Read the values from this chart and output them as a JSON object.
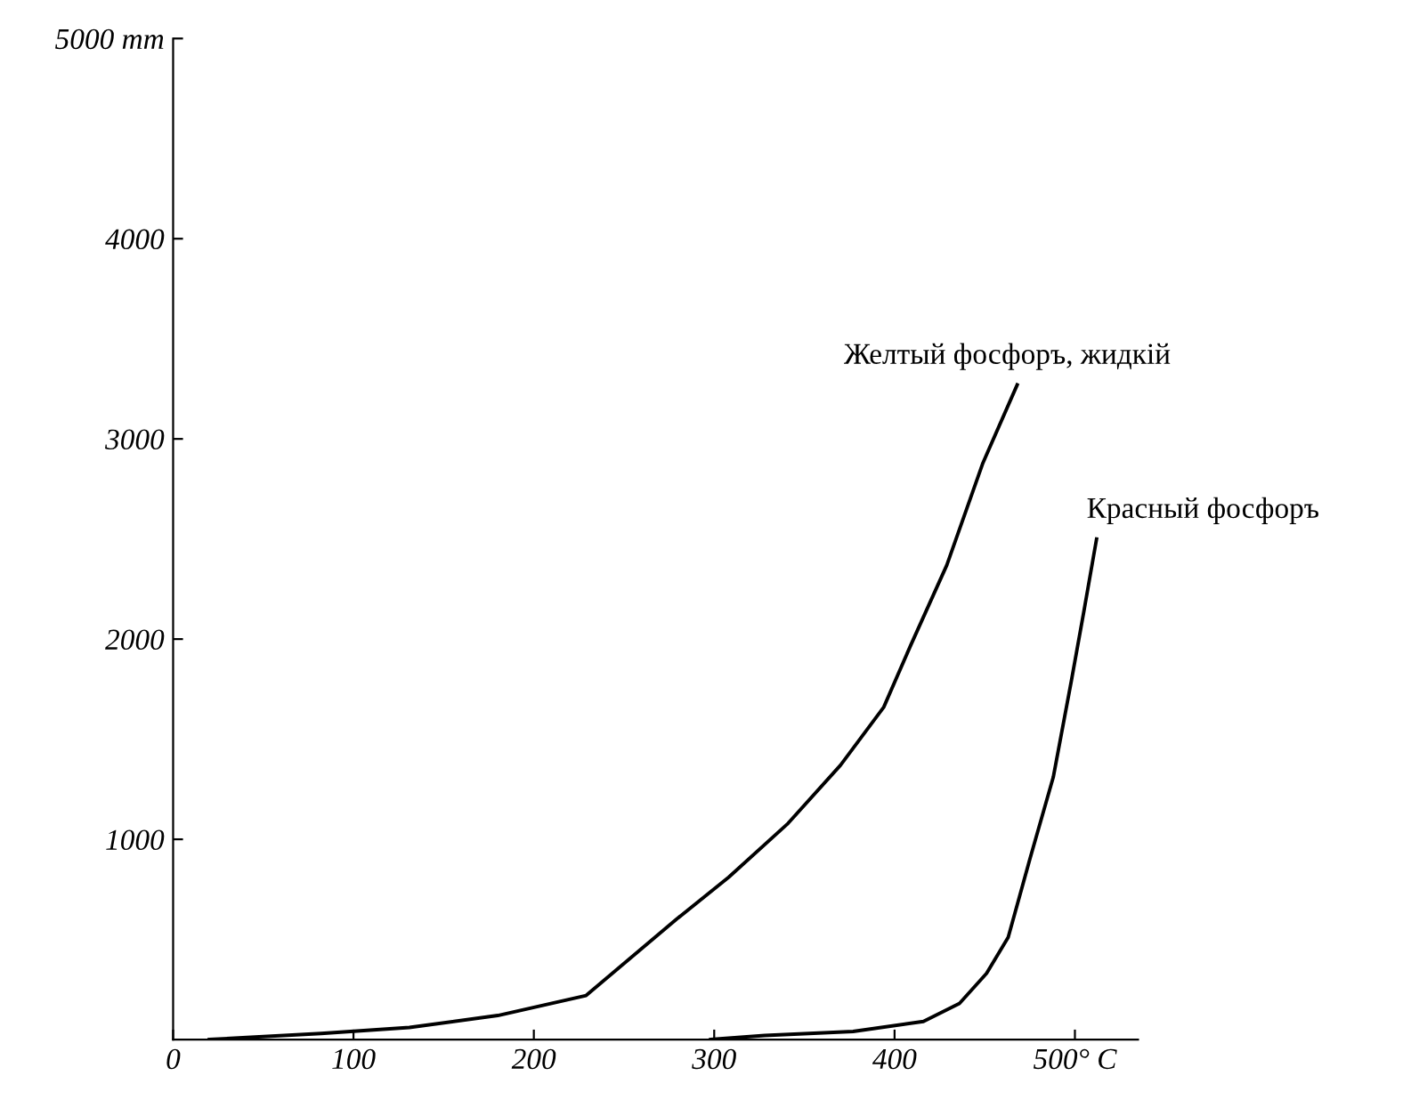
{
  "chart_data": {
    "type": "line",
    "xlim": [
      0,
      535
    ],
    "ylim": [
      0,
      5000
    ],
    "xticks": [
      0,
      100,
      200,
      300,
      400,
      {
        "value": 500,
        "label": "500° C"
      }
    ],
    "yticks": [
      1000,
      2000,
      3000,
      4000,
      {
        "value": 5000,
        "label": "5000 mm"
      }
    ],
    "grid": false,
    "legend": false,
    "marker": "none",
    "line_style": "solid",
    "series": [
      {
        "name": "Желтый фосфоръ, жидкій",
        "color": "#000000",
        "x": [
          20,
          82,
          131,
          180,
          229,
          279,
          308,
          341,
          370,
          394,
          409,
          429,
          449,
          468
        ],
        "values": [
          0,
          30,
          60,
          120,
          220,
          600,
          810,
          1080,
          1370,
          1660,
          1970,
          2370,
          2880,
          3270
        ]
      },
      {
        "name": "Красный фосфоръ",
        "color": "#000000",
        "x": [
          298,
          328,
          377,
          416,
          436,
          451,
          463,
          475,
          488,
          498,
          505,
          512
        ],
        "values": [
          0,
          20,
          40,
          90,
          180,
          330,
          510,
          900,
          1310,
          1790,
          2140,
          2500
        ]
      }
    ]
  }
}
